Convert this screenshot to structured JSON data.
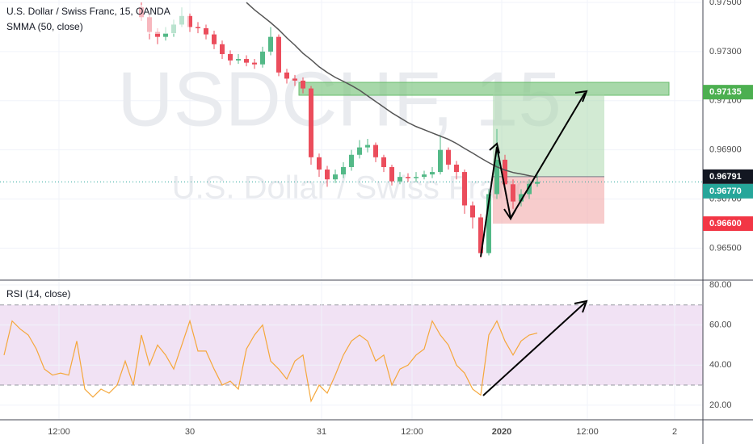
{
  "chart_data": [
    {
      "type": "candlestick",
      "title": "U.S. Dollar / Swiss Franc, 15, OANDA",
      "watermark": "USDCHF, 15",
      "watermark_sub": "U.S. Dollar / Swiss Franc",
      "up_color": "#53b987",
      "down_color": "#eb4d5c",
      "xlim": [
        0,
        87
      ],
      "ylim": [
        0.9637,
        0.9751
      ],
      "yticks": [
        {
          "value": 0.975,
          "label": "0.97500"
        },
        {
          "value": 0.973,
          "label": "0.97300"
        },
        {
          "value": 0.971,
          "label": "0.97100"
        },
        {
          "value": 0.969,
          "label": "0.96900"
        },
        {
          "value": 0.967,
          "label": "0.96700"
        },
        {
          "value": 0.965,
          "label": "0.96500"
        }
      ],
      "grid": true,
      "x": [
        17.5,
        18.5,
        19.5,
        20.5,
        21.5,
        22.5,
        23.5,
        24.5,
        25.5,
        26.5,
        27.5,
        28.5,
        29.5,
        30.5,
        31.5,
        32.5,
        33.5,
        34.5,
        35.5,
        36.5,
        37.5,
        38.5,
        39.5,
        40.5,
        41.5,
        42.5,
        43.5,
        44.5,
        45.5,
        46.5,
        47.5,
        48.5,
        49.5,
        50.5,
        51.5,
        52.5,
        53.5,
        54.5,
        55.5,
        56.5,
        57.5,
        58.5,
        59.5,
        60.5,
        61.5,
        62.5,
        63.5,
        64.5,
        65.5,
        66.5
      ],
      "open": [
        0.9748,
        0.9744,
        0.9738,
        0.9736,
        0.97375,
        0.9741,
        0.97445,
        0.974,
        0.97395,
        0.9737,
        0.9733,
        0.9729,
        0.97264,
        0.9727,
        0.97255,
        0.97248,
        0.973,
        0.9736,
        0.97215,
        0.9719,
        0.97182,
        0.9715,
        0.9687,
        0.9682,
        0.9678,
        0.968,
        0.9683,
        0.9688,
        0.9691,
        0.9692,
        0.9687,
        0.9683,
        0.96772,
        0.9679,
        0.96785,
        0.9679,
        0.968,
        0.9681,
        0.969,
        0.9684,
        0.9681,
        0.96674,
        0.96625,
        0.9648,
        0.9672,
        0.9686,
        0.9676,
        0.9669,
        0.9672,
        0.96762
      ],
      "high": [
        0.975,
        0.97455,
        0.97395,
        0.974,
        0.9743,
        0.9748,
        0.97455,
        0.9742,
        0.9741,
        0.97385,
        0.97345,
        0.97305,
        0.9729,
        0.97285,
        0.9727,
        0.9732,
        0.974,
        0.9737,
        0.9723,
        0.97205,
        0.97195,
        0.9716,
        0.96885,
        0.96835,
        0.9682,
        0.9685,
        0.969,
        0.9694,
        0.96945,
        0.9693,
        0.9688,
        0.9684,
        0.9681,
        0.96805,
        0.9681,
        0.96815,
        0.9683,
        0.9696,
        0.9691,
        0.96855,
        0.9682,
        0.9669,
        0.9664,
        0.9674,
        0.96985,
        0.9688,
        0.9678,
        0.9674,
        0.9678,
        0.968
      ],
      "low": [
        0.97425,
        0.9735,
        0.9733,
        0.97345,
        0.9736,
        0.974,
        0.9738,
        0.97375,
        0.9735,
        0.9731,
        0.9727,
        0.97245,
        0.9725,
        0.9724,
        0.9723,
        0.97235,
        0.97285,
        0.972,
        0.9717,
        0.9716,
        0.9713,
        0.9684,
        0.9679,
        0.9675,
        0.96765,
        0.96785,
        0.96815,
        0.96865,
        0.9689,
        0.9685,
        0.9681,
        0.96755,
        0.9676,
        0.9677,
        0.9677,
        0.9678,
        0.96785,
        0.968,
        0.9682,
        0.9678,
        0.9664,
        0.9658,
        0.9646,
        0.9647,
        0.967,
        0.9673,
        0.9666,
        0.9667,
        0.967,
        0.9675
      ],
      "close": [
        0.9744,
        0.9738,
        0.9736,
        0.97375,
        0.9741,
        0.97445,
        0.974,
        0.97395,
        0.9737,
        0.9733,
        0.9729,
        0.97264,
        0.9727,
        0.97255,
        0.97248,
        0.973,
        0.9736,
        0.97215,
        0.9719,
        0.97182,
        0.9715,
        0.9687,
        0.9682,
        0.9678,
        0.968,
        0.9683,
        0.9688,
        0.9691,
        0.9692,
        0.9687,
        0.9683,
        0.96772,
        0.9679,
        0.96785,
        0.9679,
        0.968,
        0.9681,
        0.969,
        0.9684,
        0.9681,
        0.96674,
        0.96625,
        0.9648,
        0.9672,
        0.9686,
        0.9676,
        0.9669,
        0.9672,
        0.96762,
        0.9677
      ],
      "smma": {
        "name": "SMMA (50, close)",
        "color": "#555555",
        "values": [
          null,
          null,
          null,
          null,
          null,
          null,
          null,
          null,
          null,
          null,
          null,
          null,
          null,
          0.975,
          0.9747,
          0.97444,
          0.97418,
          0.97389,
          0.97356,
          0.97326,
          0.97293,
          0.97267,
          0.97238,
          0.97215,
          0.97195,
          0.97179,
          0.97162,
          0.97143,
          0.9712,
          0.97097,
          0.97074,
          0.97051,
          0.97031,
          0.97011,
          0.96995,
          0.96982,
          0.96969,
          0.96956,
          0.96943,
          0.96926,
          0.96906,
          0.96887,
          0.96867,
          0.96848,
          0.96831,
          0.96818,
          0.96808,
          0.96802,
          0.96795,
          0.96789
        ]
      },
      "price_lines": [
        {
          "value": 0.97135,
          "label": "0.97135",
          "color": "#4caf50"
        },
        {
          "value": 0.96791,
          "label": "0.96791",
          "color": "#131722"
        },
        {
          "value": 0.9677,
          "label": "0.96770",
          "color": "#26a69a"
        },
        {
          "value": 0.966,
          "label": "0.96600",
          "color": "#f23645"
        }
      ]
    },
    {
      "type": "line",
      "title": "RSI (14, close)",
      "xlim": [
        0,
        87
      ],
      "ylim": [
        12.7,
        82.4
      ],
      "yticks": [
        {
          "value": 80,
          "label": "80.00"
        },
        {
          "value": 60,
          "label": "60.00"
        },
        {
          "value": 40,
          "label": "40.00"
        },
        {
          "value": 20,
          "label": "20.00"
        }
      ],
      "band": [
        30,
        70
      ],
      "xticks": [
        {
          "value": 7.3,
          "label": "12:00"
        },
        {
          "value": 23.5,
          "label": "30"
        },
        {
          "value": 39.8,
          "label": "31"
        },
        {
          "value": 51,
          "label": "12:00"
        },
        {
          "value": 62.1,
          "label": "2020"
        },
        {
          "value": 72.7,
          "label": "12:00"
        },
        {
          "value": 83.5,
          "label": "2"
        }
      ],
      "series": [
        {
          "name": "RSI",
          "color": "#f5a73b",
          "x": [
            0.5,
            1.5,
            2.5,
            3.5,
            4.5,
            5.5,
            6.5,
            7.5,
            8.5,
            9.5,
            10.5,
            11.5,
            12.5,
            13.5,
            14.5,
            15.5,
            16.5,
            17.5,
            18.5,
            19.5,
            20.5,
            21.5,
            22.5,
            23.5,
            24.5,
            25.5,
            26.5,
            27.5,
            28.5,
            29.5,
            30.5,
            31.5,
            32.5,
            33.5,
            34.5,
            35.5,
            36.5,
            37.5,
            38.5,
            39.5,
            40.5,
            41.5,
            42.5,
            43.5,
            44.5,
            45.5,
            46.5,
            47.5,
            48.5,
            49.5,
            50.5,
            51.5,
            52.5,
            53.5,
            54.5,
            55.5,
            56.5,
            57.5,
            58.5,
            59.5,
            60.5,
            61.5,
            62.5,
            63.5,
            64.5,
            65.5,
            66.5
          ],
          "values": [
            45,
            62,
            58,
            55,
            48,
            38,
            35,
            36,
            35,
            52,
            28,
            24,
            28,
            26,
            30,
            42,
            30,
            55,
            40,
            50,
            45,
            38,
            50,
            62,
            47,
            47,
            38,
            30,
            32,
            28,
            48,
            55,
            60,
            42,
            38,
            33,
            42,
            45,
            22,
            30,
            26,
            35,
            45,
            52,
            55,
            52,
            42,
            45,
            30,
            38,
            40,
            45,
            48,
            62,
            55,
            50,
            40,
            36,
            28,
            25,
            55,
            62,
            52,
            45,
            52,
            55,
            56
          ]
        }
      ]
    }
  ]
}
